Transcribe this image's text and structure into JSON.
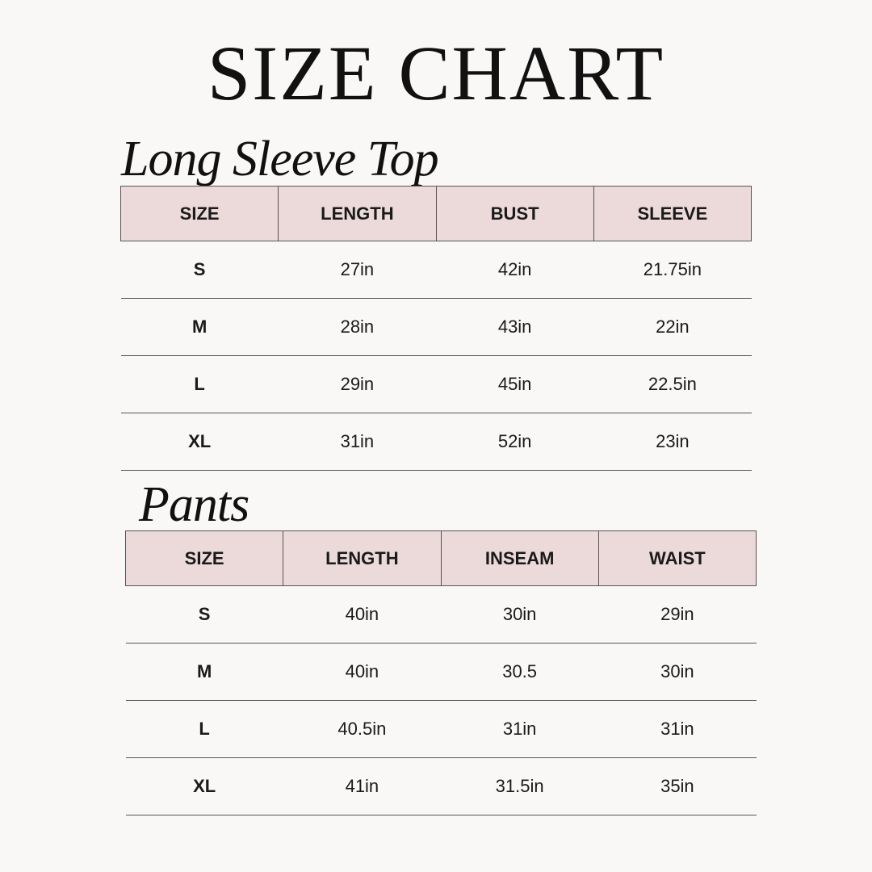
{
  "title": "SIZE CHART",
  "colors": {
    "header_bg": "#ecd9d9",
    "background": "#f9f8f6",
    "border": "#555555"
  },
  "tables": [
    {
      "heading": "Long Sleeve Top",
      "columns": [
        "SIZE",
        "LENGTH",
        "BUST",
        "SLEEVE"
      ],
      "rows": [
        [
          "S",
          "27in",
          "42in",
          "21.75in"
        ],
        [
          "M",
          "28in",
          "43in",
          "22in"
        ],
        [
          "L",
          "29in",
          "45in",
          "22.5in"
        ],
        [
          "XL",
          "31in",
          "52in",
          "23in"
        ]
      ]
    },
    {
      "heading": "Pants",
      "columns": [
        "SIZE",
        "LENGTH",
        "INSEAM",
        "WAIST"
      ],
      "rows": [
        [
          "S",
          "40in",
          "30in",
          "29in"
        ],
        [
          "M",
          "40in",
          "30.5",
          "30in"
        ],
        [
          "L",
          "40.5in",
          "31in",
          "31in"
        ],
        [
          "XL",
          "41in",
          "31.5in",
          "35in"
        ]
      ]
    }
  ]
}
